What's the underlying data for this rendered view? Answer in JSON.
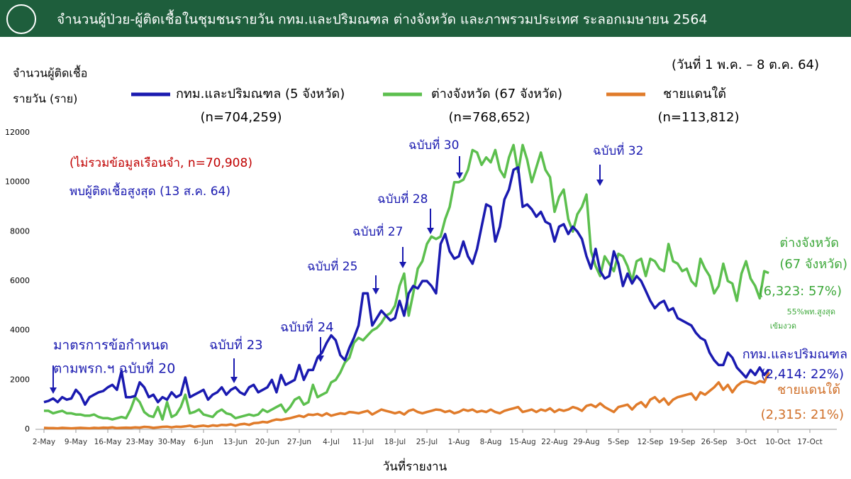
{
  "chart_data": {
    "type": "line",
    "title": "จำนวนผู้ป่วย-ผู้ติดเชื้อในชุมชนรายวัน กทม.และปริมณฑล ต่างจังหวัด และภาพรวมประเทศ ระลอกเมษายน 2564",
    "subtitle": "(วันที่ 1 พ.ค. – 8 ต.ค. 64)",
    "y_label": [
      "จำนวนผู้ติดเชื้อ",
      "รายวัน (ราย)"
    ],
    "x_label": "วันที่รายงาน",
    "ylim": [
      0,
      12000
    ],
    "yticks": [
      0,
      2000,
      4000,
      6000,
      8000,
      10000,
      12000
    ],
    "grid": false,
    "categories": [
      "2-May",
      null,
      null,
      null,
      null,
      null,
      null,
      "9-May",
      null,
      null,
      null,
      null,
      null,
      null,
      "16-May",
      null,
      null,
      null,
      null,
      null,
      null,
      "23-May",
      null,
      null,
      null,
      null,
      null,
      null,
      "30-May",
      null,
      null,
      null,
      null,
      null,
      null,
      "6-Jun",
      null,
      null,
      null,
      null,
      null,
      null,
      "13-Jun",
      null,
      null,
      null,
      null,
      null,
      null,
      "20-Jun",
      null,
      null,
      null,
      null,
      null,
      null,
      "27-Jun",
      null,
      null,
      null,
      null,
      null,
      null,
      "4-Jul",
      null,
      null,
      null,
      null,
      null,
      null,
      "11-Jul",
      null,
      null,
      null,
      null,
      null,
      null,
      "18-Jul",
      null,
      null,
      null,
      null,
      null,
      null,
      "25-Jul",
      null,
      null,
      null,
      null,
      null,
      null,
      "1-Aug",
      null,
      null,
      null,
      null,
      null,
      null,
      "8-Aug",
      null,
      null,
      null,
      null,
      null,
      null,
      "15-Aug",
      null,
      null,
      null,
      null,
      null,
      null,
      "22-Aug",
      null,
      null,
      null,
      null,
      null,
      null,
      "29-Aug",
      null,
      null,
      null,
      null,
      null,
      null,
      "5-Sep",
      null,
      null,
      null,
      null,
      null,
      null,
      "12-Sep",
      null,
      null,
      null,
      null,
      null,
      null,
      "19-Sep",
      null,
      null,
      null,
      null,
      null,
      null,
      "26-Sep",
      null,
      null,
      null,
      null,
      null,
      null,
      "3-Oct",
      null,
      null,
      null,
      null,
      null,
      null,
      "10-Oct",
      null,
      null,
      null,
      null,
      null,
      null,
      "17-Oct"
    ],
    "series": [
      {
        "name": "กทม.และปริมณฑล (5 จังหวัด)",
        "total": "(n=704,259)",
        "color": "#1a1ab0",
        "values": [
          1100,
          1150,
          1250,
          1100,
          1300,
          1200,
          1250,
          1600,
          1400,
          1000,
          1300,
          1400,
          1500,
          1550,
          1700,
          1800,
          1600,
          2350,
          1300,
          1300,
          1350,
          1900,
          1700,
          1300,
          1400,
          1100,
          1300,
          1200,
          1500,
          1300,
          1400,
          2100,
          1300,
          1400,
          1500,
          1600,
          1200,
          1400,
          1500,
          1700,
          1400,
          1600,
          1700,
          1500,
          1400,
          1700,
          1800,
          1500,
          1600,
          1700,
          2000,
          1500,
          2200,
          1800,
          1900,
          2000,
          2600,
          2000,
          2400,
          2400,
          2900,
          3100,
          3500,
          3800,
          3600,
          3000,
          2800,
          3300,
          3700,
          4200,
          5500,
          5500,
          4200,
          4500,
          4800,
          4600,
          4400,
          4500,
          5200,
          4600,
          5500,
          5800,
          5700,
          6000,
          6000,
          5800,
          5500,
          7500,
          7900,
          7200,
          6900,
          7000,
          7600,
          7000,
          6700,
          7300,
          8200,
          9100,
          9000,
          7600,
          8200,
          9300,
          9700,
          10500,
          10600,
          9000,
          9100,
          8900,
          8600,
          8800,
          8400,
          8300,
          7600,
          8200,
          8300,
          7900,
          8200,
          8000,
          7700,
          7000,
          6500,
          7300,
          6400,
          6100,
          6200,
          7200,
          6700,
          5800,
          6300,
          5900,
          6200,
          6000,
          5600,
          5200,
          4900,
          5100,
          5200,
          4800,
          4900,
          4500,
          4400,
          4300,
          4200,
          3900,
          3700,
          3600,
          3100,
          2800,
          2600,
          2600,
          3100,
          2900,
          2500,
          2300,
          2100,
          2400,
          2200,
          2500,
          2200,
          2414,
          null,
          null,
          null,
          null,
          null,
          null,
          null,
          null,
          null
        ]
      },
      {
        "name": "ต่างจังหวัด (67 จังหวัด)",
        "total": "(n=768,652)",
        "color": "#5cbf4e",
        "values": [
          750,
          750,
          650,
          700,
          750,
          650,
          650,
          600,
          600,
          550,
          550,
          600,
          500,
          450,
          450,
          400,
          450,
          500,
          450,
          800,
          1300,
          1100,
          700,
          550,
          500,
          900,
          400,
          1100,
          500,
          600,
          900,
          1400,
          650,
          700,
          800,
          600,
          550,
          500,
          700,
          800,
          650,
          600,
          450,
          500,
          550,
          600,
          550,
          600,
          800,
          700,
          800,
          900,
          1000,
          700,
          900,
          1200,
          1300,
          1000,
          1100,
          1800,
          1300,
          1400,
          1500,
          1900,
          2000,
          2300,
          2700,
          2900,
          3500,
          3700,
          3600,
          3800,
          4000,
          4100,
          4300,
          4600,
          4700,
          5000,
          5800,
          6300,
          4600,
          5500,
          6500,
          6800,
          7500,
          7800,
          7700,
          7800,
          8500,
          9000,
          10000,
          10000,
          10100,
          10500,
          11300,
          11200,
          10700,
          11000,
          10800,
          11300,
          10500,
          10200,
          11000,
          11500,
          10400,
          11500,
          10900,
          10000,
          10600,
          11200,
          10500,
          10200,
          8800,
          9400,
          9700,
          8500,
          8000,
          8700,
          9000,
          9500,
          7200,
          6600,
          6200,
          7000,
          6700,
          6400,
          7100,
          7000,
          6600,
          6000,
          6800,
          6900,
          6200,
          6900,
          6800,
          6500,
          6400,
          7500,
          6800,
          6700,
          6400,
          6500,
          6000,
          5800,
          6900,
          6500,
          6200,
          5500,
          5800,
          6700,
          6000,
          5900,
          5200,
          6300,
          6800,
          6100,
          5800,
          5300,
          6400,
          6323,
          null,
          null,
          null,
          null,
          null,
          null,
          null,
          null,
          null
        ]
      },
      {
        "name": "ชายแดนใต้",
        "total": "(n=113,812)",
        "color": "#e07b2a",
        "values": [
          60,
          50,
          50,
          40,
          60,
          50,
          40,
          50,
          60,
          50,
          40,
          60,
          50,
          70,
          60,
          80,
          50,
          60,
          70,
          60,
          80,
          70,
          100,
          90,
          60,
          80,
          100,
          110,
          80,
          110,
          100,
          120,
          150,
          100,
          130,
          150,
          120,
          160,
          140,
          180,
          170,
          200,
          150,
          200,
          220,
          180,
          250,
          260,
          300,
          280,
          350,
          400,
          380,
          420,
          450,
          500,
          550,
          500,
          600,
          580,
          620,
          550,
          650,
          550,
          600,
          650,
          620,
          700,
          680,
          650,
          700,
          750,
          600,
          700,
          800,
          750,
          700,
          650,
          700,
          600,
          750,
          800,
          700,
          650,
          700,
          750,
          800,
          780,
          700,
          750,
          650,
          700,
          800,
          750,
          800,
          700,
          750,
          700,
          800,
          700,
          650,
          750,
          800,
          850,
          900,
          700,
          750,
          800,
          700,
          800,
          750,
          850,
          700,
          800,
          750,
          800,
          900,
          850,
          750,
          950,
          1000,
          900,
          1050,
          900,
          800,
          700,
          900,
          950,
          1000,
          800,
          1000,
          1100,
          900,
          1200,
          1300,
          1100,
          1250,
          1000,
          1200,
          1300,
          1350,
          1400,
          1450,
          1200,
          1500,
          1400,
          1550,
          1700,
          1900,
          1600,
          1800,
          1500,
          1750,
          1900,
          1950,
          1900,
          1850,
          1950,
          1900,
          2315,
          null,
          null,
          null,
          null,
          null,
          null,
          null,
          null,
          null
        ]
      }
    ],
    "annotations": [
      "(ไม่รวมข้อมูลเรือนจำ, n=70,908)",
      "พบผู้ติดเชื้อสูงสุด (13 ส.ค. 64)",
      "มาตรการข้อกำหนด",
      "ตามพรก.ฯ ฉบับที่ 20",
      "ฉบับที่ 23",
      "ฉบับที่ 24",
      "ฉบับที่ 25",
      "ฉบับที่ 27",
      "ฉบับที่ 28",
      "ฉบับที่ 30",
      "ฉบับที่ 32",
      "ต่างจังหวัด",
      "(67 จังหวัด)",
      "(6,323: 57%)",
      "55%พท.สูงสุด",
      "เข้มงวด",
      "กทม.และปริมณฑล",
      "(2,414: 22%)",
      "ชายแดนใต้",
      "(2,315: 21%)"
    ]
  }
}
